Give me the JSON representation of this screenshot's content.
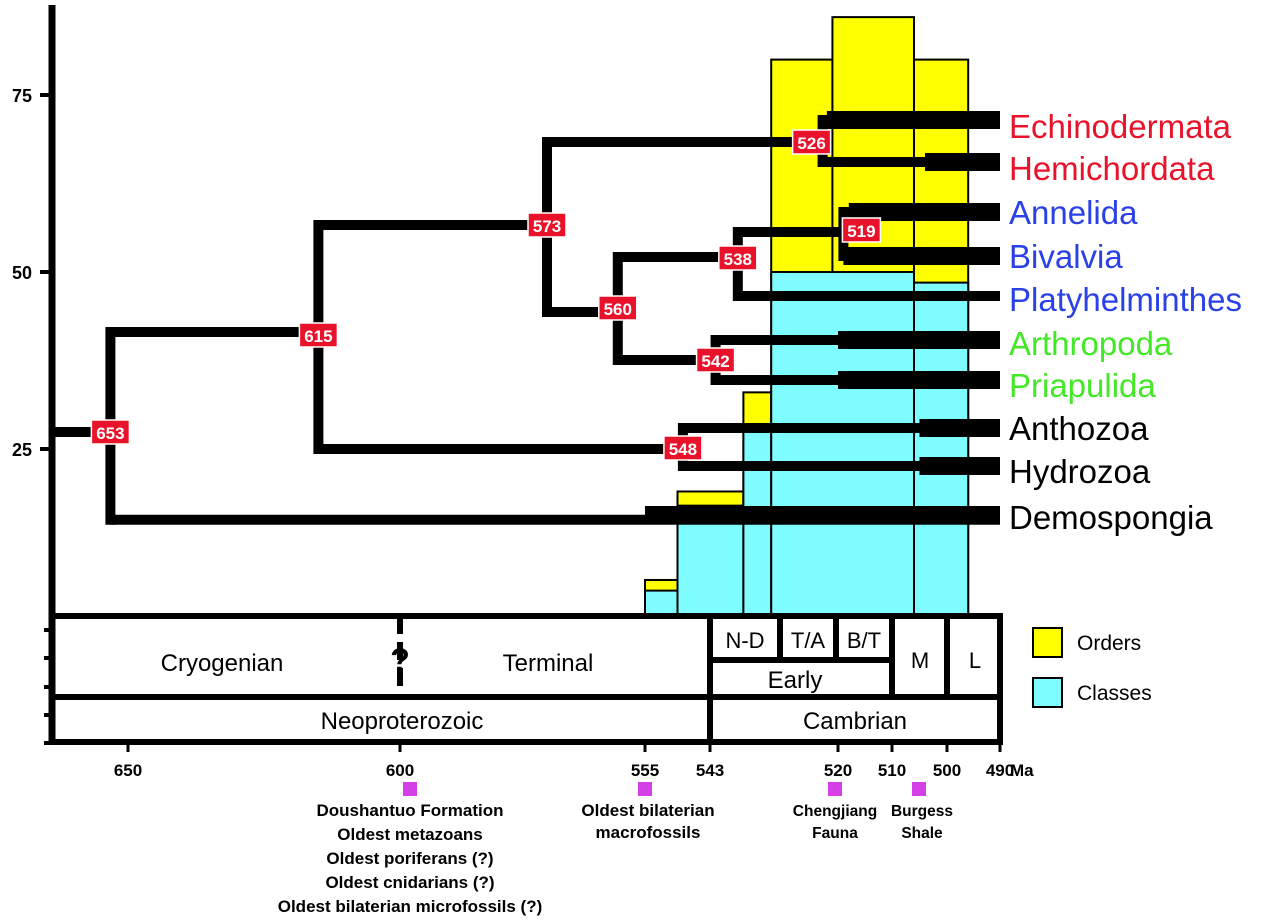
{
  "chart_data": {
    "type": "area",
    "x_unit": "Ma",
    "y_ticks": [
      75,
      50,
      25
    ],
    "x_ticks": [
      {
        "label": "650",
        "ma": 650
      },
      {
        "label": "600",
        "ma": 600
      },
      {
        "label": "555",
        "ma": 555
      },
      {
        "label": "543",
        "ma": 543
      },
      {
        "label": "520",
        "ma": 520
      },
      {
        "label": "510",
        "ma": 510
      },
      {
        "label": "500",
        "ma": 500
      },
      {
        "label": "490",
        "ma": 490
      }
    ],
    "series": [
      {
        "name": "Orders",
        "color": "#ffff00",
        "steps": [
          {
            "from": 555,
            "to": 549,
            "value": 6.5
          },
          {
            "from": 549,
            "to": 537,
            "value": 19
          },
          {
            "from": 537,
            "to": 532,
            "value": 33
          },
          {
            "from": 532,
            "to": 521,
            "value": 80
          },
          {
            "from": 521,
            "to": 506,
            "value": 86
          },
          {
            "from": 506,
            "to": 496,
            "value": 80
          }
        ]
      },
      {
        "name": "Classes",
        "color": "#7ffcff",
        "steps": [
          {
            "from": 555,
            "to": 549,
            "value": 5
          },
          {
            "from": 549,
            "to": 537,
            "value": 17
          },
          {
            "from": 537,
            "to": 532,
            "value": 28
          },
          {
            "from": 532,
            "to": 506,
            "value": 50
          },
          {
            "from": 506,
            "to": 496,
            "value": 48.5
          }
        ]
      }
    ],
    "taxa": [
      {
        "name": "Echinodermata",
        "color": "#e8132b",
        "y": 71.5,
        "thick_from": 522
      },
      {
        "name": "Hemichordata",
        "color": "#e8132b",
        "y": 65,
        "thick_from": 504
      },
      {
        "name": "Annelida",
        "color": "#2a41e8",
        "y": 58.5,
        "thick_from": 518
      },
      {
        "name": "Bivalvia",
        "color": "#2a41e8",
        "y": 52,
        "thick_from": 519
      },
      {
        "name": "Platyhelminthes",
        "color": "#2a41e8",
        "y": 45.5,
        "thick_from": null
      },
      {
        "name": "Arthropoda",
        "color": "#43e826",
        "y": 40,
        "thick_from": 520
      },
      {
        "name": "Priapulida",
        "color": "#43e826",
        "y": 34,
        "thick_from": 520
      },
      {
        "name": "Anthozoa",
        "color": "#000000",
        "y": 28,
        "thick_from": 505
      },
      {
        "name": "Hydrozoa",
        "color": "#000000",
        "y": 21.5,
        "thick_from": 505
      },
      {
        "name": "Demospongia",
        "color": "#000000",
        "y": 15,
        "thick_from": 555
      }
    ],
    "nodes": [
      {
        "label": "653",
        "ma": 653,
        "children": [
          "root",
          "n615"
        ],
        "child_y": [
          27,
          15
        ]
      },
      {
        "label": "615",
        "ma": 615
      },
      {
        "label": "573",
        "ma": 573
      },
      {
        "label": "560",
        "ma": 560
      },
      {
        "label": "548",
        "ma": 548
      },
      {
        "label": "542",
        "ma": 542
      },
      {
        "label": "538",
        "ma": 538
      },
      {
        "label": "526",
        "ma": 526
      },
      {
        "label": "519",
        "ma": 519
      }
    ],
    "time_scale": {
      "periods_row1": [
        {
          "label": "Cryogenian",
          "from": 660,
          "to": 600
        },
        {
          "label": "?",
          "from": 600,
          "to": 600
        },
        {
          "label": "Terminal",
          "from": 600,
          "to": 543
        },
        {
          "label": "N-D",
          "from": 543,
          "to": 530
        },
        {
          "label": "T/A",
          "from": 530,
          "to": 522
        },
        {
          "label": "B/T",
          "from": 522,
          "to": 511
        },
        {
          "label": "M",
          "from": 511,
          "to": 500
        },
        {
          "label": "L",
          "from": 500,
          "to": 490
        }
      ],
      "early_label": "Early",
      "eras": [
        {
          "label": "Neoproterozoic",
          "from": 660,
          "to": 543
        },
        {
          "label": "Cambrian",
          "from": 543,
          "to": 490
        }
      ]
    },
    "legend": [
      {
        "label": "Orders",
        "color": "#ffff00"
      },
      {
        "label": "Classes",
        "color": "#7ffcff"
      }
    ],
    "annotations": [
      {
        "ma": 600,
        "lines": [
          "Doushantuo Formation",
          "Oldest metazoans",
          "Oldest poriferans (?)",
          "Oldest cnidarians (?)",
          "Oldest bilaterian microfossils (?)"
        ]
      },
      {
        "ma": 555,
        "lines": [
          "Oldest bilaterian",
          "macrofossils"
        ]
      },
      {
        "ma": 521,
        "lines": [
          "Chengjiang",
          "Fauna"
        ]
      },
      {
        "ma": 505,
        "lines": [
          "Burgess",
          "Shale"
        ]
      }
    ],
    "marker_color": "#d43fe8",
    "node_color": "#e8132b"
  }
}
